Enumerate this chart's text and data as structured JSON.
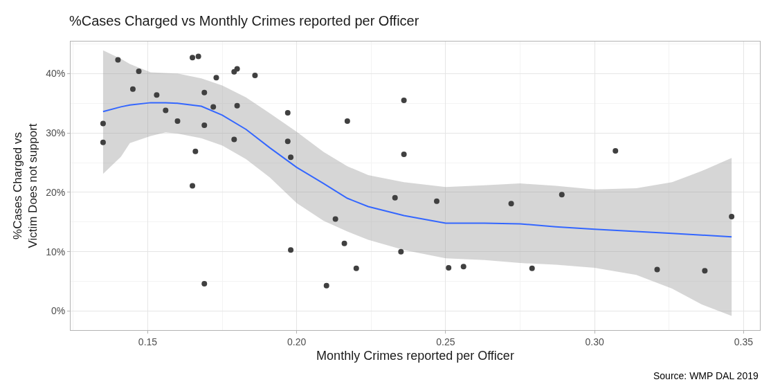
{
  "chart_data": {
    "type": "scatter",
    "title": "%Cases Charged vs Monthly Crimes reported per Officer",
    "xlabel": "Monthly Crimes reported per Officer",
    "ylabel": "%Cases Charged vs\nVictim Does not support",
    "annotations": [
      "Source: WMP DAL 2019"
    ],
    "xlim": [
      0.1241,
      0.3555
    ],
    "ylim": [
      -3.2,
      45.4
    ],
    "xticks": [
      0.15,
      {
        "value": 0.2,
        "label": "0.20"
      },
      0.25,
      {
        "value": 0.3,
        "label": "0.30"
      },
      0.35
    ],
    "yticks": [
      {
        "value": 0,
        "label": "0%"
      },
      {
        "value": 10,
        "label": "10%"
      },
      {
        "value": 20,
        "label": "20%"
      },
      {
        "value": 30,
        "label": "30%"
      },
      {
        "value": 40,
        "label": "40%"
      }
    ],
    "grid": true,
    "marker": "circle",
    "series": [
      {
        "type": "line",
        "color": "#3366ff",
        "line_style": "solid",
        "marker": "none",
        "x": [
          0.135,
          0.141,
          0.144,
          0.151,
          0.156,
          0.16,
          0.168,
          0.175,
          0.183,
          0.191,
          0.2,
          0.209,
          0.217,
          0.224,
          0.236,
          0.25,
          0.263,
          0.275,
          0.287,
          0.3,
          0.314,
          0.326,
          0.336,
          0.346
        ],
        "values": [
          33.6,
          34.4,
          34.7,
          35.1,
          35.1,
          35.0,
          34.5,
          33.0,
          30.6,
          27.5,
          24.2,
          21.5,
          19.0,
          17.6,
          16.1,
          14.8,
          14.8,
          14.7,
          14.2,
          13.8,
          13.4,
          13.1,
          12.8,
          12.5
        ],
        "lower": [
          23.1,
          26.0,
          28.3,
          29.5,
          30.1,
          29.9,
          29.1,
          27.9,
          25.6,
          22.5,
          18.2,
          15.2,
          13.4,
          12.0,
          10.3,
          8.9,
          8.6,
          8.1,
          7.8,
          7.3,
          6.1,
          3.8,
          1.1,
          -0.8
        ],
        "upper": [
          43.9,
          42.5,
          41.6,
          40.2,
          40.1,
          40.0,
          39.2,
          38.0,
          36.0,
          33.3,
          30.2,
          26.8,
          24.4,
          22.9,
          21.7,
          20.9,
          21.2,
          21.5,
          21.1,
          20.5,
          20.7,
          21.7,
          23.6,
          25.8
        ]
      },
      {
        "color": "#404040",
        "x": [
          0.135,
          0.135,
          0.14,
          0.145,
          0.147,
          0.153,
          0.156,
          0.16,
          0.165,
          0.165,
          0.166,
          0.167,
          0.169,
          0.169,
          0.169,
          0.172,
          0.173,
          0.179,
          0.179,
          0.18,
          0.18,
          0.186,
          0.197,
          0.197,
          0.198,
          0.198,
          0.21,
          0.213,
          0.216,
          0.217,
          0.22,
          0.233,
          0.235,
          0.236,
          0.236,
          0.247,
          0.251,
          0.256,
          0.272,
          0.279,
          0.289,
          0.307,
          0.321,
          0.337,
          0.346
        ],
        "values": [
          31.6,
          28.4,
          42.3,
          37.4,
          40.4,
          36.4,
          33.8,
          32.0,
          42.7,
          21.1,
          26.9,
          42.9,
          36.8,
          31.3,
          4.6,
          34.4,
          39.3,
          40.3,
          28.9,
          40.8,
          34.6,
          39.7,
          33.4,
          28.6,
          25.9,
          10.3,
          4.3,
          15.5,
          11.4,
          32.0,
          7.2,
          19.1,
          10.0,
          35.5,
          26.4,
          18.5,
          7.3,
          7.5,
          18.1,
          7.2,
          19.6,
          27.0,
          7.0,
          6.8,
          15.9
        ]
      }
    ]
  }
}
